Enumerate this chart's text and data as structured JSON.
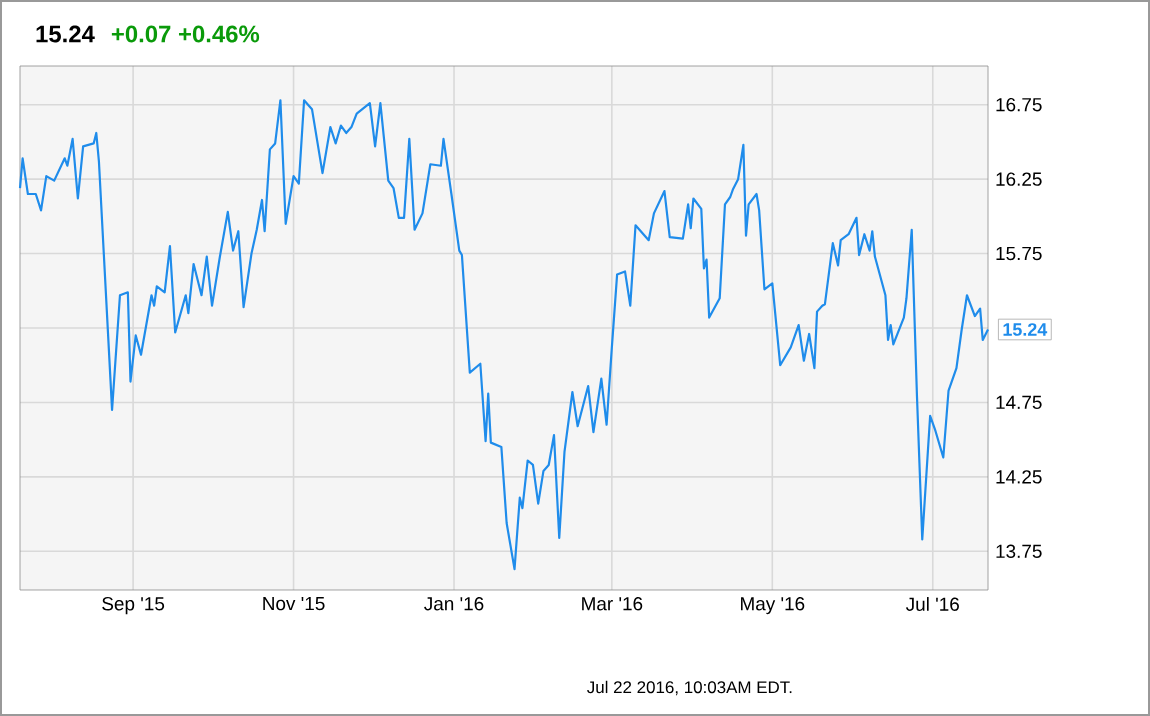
{
  "chart_data": {
    "type": "line",
    "title": "15.24",
    "subtitle": "+0.07 +0.46%",
    "annotations": [
      {
        "text": "15.24",
        "x": "2016-07-22",
        "y": 15.24
      },
      "Jul 22 2016, 10:03AM EDT."
    ],
    "x": [
      "2015-07-20",
      "2015-07-21",
      "2015-07-23",
      "2015-07-26",
      "2015-07-28",
      "2015-07-30",
      "2015-08-02",
      "2015-08-06",
      "2015-08-07",
      "2015-08-09",
      "2015-08-11",
      "2015-08-13",
      "2015-08-17",
      "2015-08-18",
      "2015-08-19",
      "2015-08-24",
      "2015-08-27",
      "2015-08-30",
      "2015-08-31",
      "2015-09-02",
      "2015-09-04",
      "2015-09-08",
      "2015-09-09",
      "2015-09-10",
      "2015-09-13",
      "2015-09-15",
      "2015-09-17",
      "2015-09-21",
      "2015-09-22",
      "2015-09-24",
      "2015-09-27",
      "2015-09-29",
      "2015-10-01",
      "2015-10-04",
      "2015-10-07",
      "2015-10-09",
      "2015-10-11",
      "2015-10-13",
      "2015-10-16",
      "2015-10-18",
      "2015-10-20",
      "2015-10-21",
      "2015-10-23",
      "2015-10-25",
      "2015-10-27",
      "2015-10-29",
      "2015-11-01",
      "2015-11-03",
      "2015-11-05",
      "2015-11-08",
      "2015-11-12",
      "2015-11-15",
      "2015-11-17",
      "2015-11-19",
      "2015-11-21",
      "2015-11-23",
      "2015-11-25",
      "2015-11-30",
      "2015-12-02",
      "2015-12-04",
      "2015-12-07",
      "2015-12-09",
      "2015-12-11",
      "2015-12-13",
      "2015-12-15",
      "2015-12-17",
      "2015-12-20",
      "2015-12-23",
      "2015-12-27",
      "2015-12-28",
      "2015-12-31",
      "2016-01-03",
      "2016-01-04",
      "2016-01-07",
      "2016-01-11",
      "2016-01-13",
      "2016-01-14",
      "2016-01-15",
      "2016-01-19",
      "2016-01-21",
      "2016-01-24",
      "2016-01-26",
      "2016-01-27",
      "2016-01-29",
      "2016-01-31",
      "2016-02-02",
      "2016-02-04",
      "2016-02-06",
      "2016-02-08",
      "2016-02-10",
      "2016-02-12",
      "2016-02-15",
      "2016-02-17",
      "2016-02-21",
      "2016-02-23",
      "2016-02-26",
      "2016-02-28",
      "2016-03-01",
      "2016-03-03",
      "2016-03-06",
      "2016-03-08",
      "2016-03-10",
      "2016-03-15",
      "2016-03-17",
      "2016-03-21",
      "2016-03-23",
      "2016-03-28",
      "2016-03-30",
      "2016-03-31",
      "2016-04-01",
      "2016-04-04",
      "2016-04-05",
      "2016-04-06",
      "2016-04-07",
      "2016-04-11",
      "2016-04-13",
      "2016-04-15",
      "2016-04-16",
      "2016-04-18",
      "2016-04-20",
      "2016-04-21",
      "2016-04-22",
      "2016-04-25",
      "2016-04-26",
      "2016-04-28",
      "2016-05-01",
      "2016-05-04",
      "2016-05-08",
      "2016-05-11",
      "2016-05-13",
      "2016-05-15",
      "2016-05-17",
      "2016-05-18",
      "2016-05-20",
      "2016-05-21",
      "2016-05-24",
      "2016-05-26",
      "2016-05-27",
      "2016-05-30",
      "2016-06-02",
      "2016-06-03",
      "2016-06-05",
      "2016-06-07",
      "2016-06-08",
      "2016-06-09",
      "2016-06-13",
      "2016-06-14",
      "2016-06-15",
      "2016-06-16",
      "2016-06-20",
      "2016-06-21",
      "2016-06-23",
      "2016-06-25",
      "2016-06-27",
      "2016-06-30",
      "2016-07-02",
      "2016-07-05",
      "2016-07-07",
      "2016-07-10",
      "2016-07-12",
      "2016-07-14",
      "2016-07-17",
      "2016-07-19",
      "2016-07-20",
      "2016-07-22"
    ],
    "series": [
      {
        "color": "#1f8ceb",
        "values": [
          16.19,
          16.39,
          16.15,
          16.15,
          16.04,
          16.27,
          16.24,
          16.39,
          16.34,
          16.52,
          16.12,
          16.47,
          16.49,
          16.56,
          16.37,
          14.7,
          15.47,
          15.49,
          14.89,
          15.2,
          15.07,
          15.47,
          15.4,
          15.53,
          15.49,
          15.8,
          15.22,
          15.47,
          15.35,
          15.68,
          15.47,
          15.73,
          15.4,
          15.73,
          16.03,
          15.77,
          15.9,
          15.39,
          15.75,
          15.91,
          16.11,
          15.9,
          16.45,
          16.49,
          16.78,
          15.95,
          16.27,
          16.22,
          16.78,
          16.72,
          16.29,
          16.6,
          16.49,
          16.61,
          16.56,
          16.6,
          16.69,
          16.76,
          16.47,
          16.76,
          16.24,
          16.19,
          15.99,
          15.99,
          16.52,
          15.91,
          16.02,
          16.35,
          16.34,
          16.52,
          16.15,
          15.77,
          15.74,
          14.95,
          15.01,
          14.49,
          14.81,
          14.48,
          14.45,
          13.94,
          13.63,
          14.11,
          14.04,
          14.36,
          14.33,
          14.07,
          14.29,
          14.33,
          14.53,
          13.84,
          14.42,
          14.82,
          14.59,
          14.86,
          14.55,
          14.91,
          14.6,
          15.12,
          15.61,
          15.63,
          15.4,
          15.94,
          15.84,
          16.02,
          16.17,
          15.86,
          15.85,
          16.08,
          15.92,
          16.12,
          16.05,
          15.65,
          15.71,
          15.32,
          15.45,
          16.08,
          16.13,
          16.18,
          16.25,
          16.48,
          15.87,
          16.08,
          16.15,
          16.04,
          15.51,
          15.55,
          15.0,
          15.12,
          15.27,
          15.03,
          15.21,
          14.98,
          15.36,
          15.4,
          15.41,
          15.82,
          15.67,
          15.84,
          15.88,
          15.99,
          15.74,
          15.88,
          15.77,
          15.9,
          15.73,
          15.47,
          15.17,
          15.27,
          15.14,
          15.32,
          15.45,
          15.91,
          14.79,
          13.83,
          14.66,
          14.56,
          14.38,
          14.83,
          14.98,
          15.24,
          15.47,
          15.33,
          15.38,
          15.17,
          15.24
        ]
      }
    ],
    "xlim": [
      "2015-07-20",
      "2016-07-22"
    ],
    "xticks": [
      {
        "value": "2015-09-01",
        "label": "Sep '15"
      },
      {
        "value": "2015-11-01",
        "label": "Nov '15"
      },
      {
        "value": "2016-01-01",
        "label": "Jan '16"
      },
      {
        "value": "2016-03-01",
        "label": "Mar '16"
      },
      {
        "value": "2016-05-01",
        "label": "May '16"
      },
      {
        "value": "2016-07-01",
        "label": "Jul '16"
      }
    ],
    "ylim": [
      13.49,
      17.01
    ],
    "yticks": [
      13.75,
      14.25,
      14.75,
      {
        "value": 15.25,
        "label": null
      },
      15.75,
      16.25,
      16.75
    ],
    "grid": true
  }
}
